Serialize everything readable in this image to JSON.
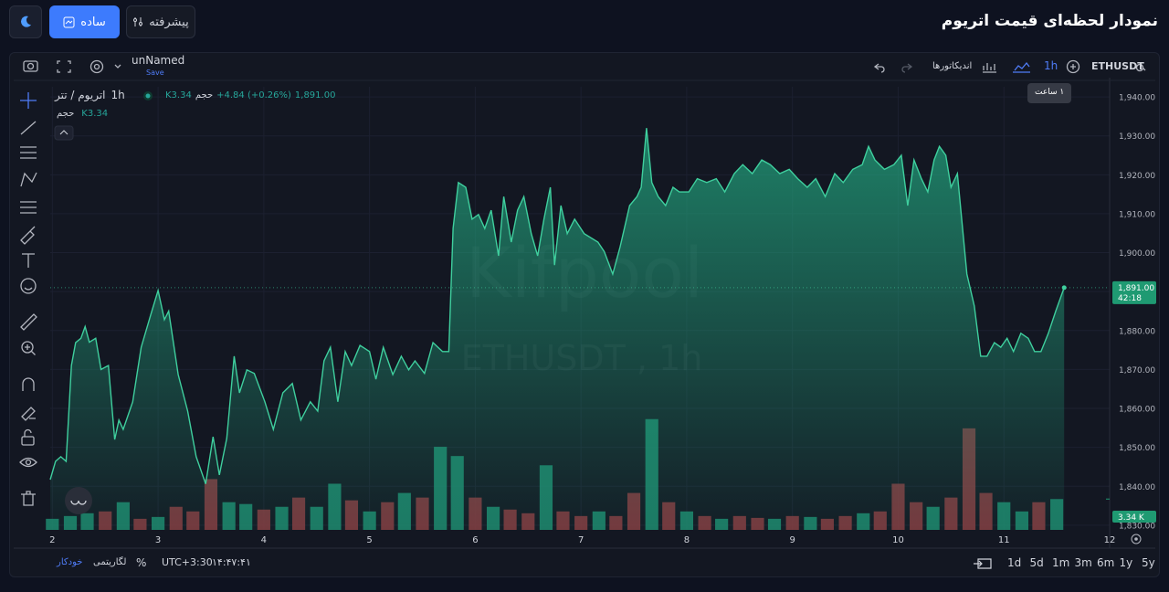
{
  "header": {
    "title": "نمودار لحظه‌ای قیمت اتریوم",
    "simple": "ساده",
    "advanced": "پیشرفته"
  },
  "toolbar": {
    "layout_name": "unNamed",
    "save": "Save",
    "symbol": "ETHUSDT",
    "interval": "1h",
    "indicators": "اندیکاتورها",
    "tooltip": "۱ ساعت"
  },
  "legend": {
    "symbol": "اتریوم / تتر",
    "interval": "1h",
    "volume_label": "حجم",
    "volume": "K3.34",
    "change": "+4.84 (+0.26%)",
    "price": "1,891.00"
  },
  "chart_data": {
    "type": "area",
    "watermark": "Kifpool",
    "watermark_sub": "ETHUSDT , 1h",
    "color": "#3fcf9e",
    "x": [
      1.98,
      2.03,
      2.08,
      2.13,
      2.18,
      2.22,
      2.27,
      2.31,
      2.35,
      2.41,
      2.46,
      2.53,
      2.59,
      2.63,
      2.67,
      2.76,
      2.84,
      2.93,
      3.0,
      3.06,
      3.1,
      3.19,
      3.28,
      3.36,
      3.45,
      3.52,
      3.58,
      3.65,
      3.72,
      3.77,
      3.84,
      3.91,
      4.01,
      4.09,
      4.18,
      4.27,
      4.35,
      4.44,
      4.51,
      4.57,
      4.63,
      4.7,
      4.77,
      4.83,
      4.91,
      5.0,
      5.06,
      5.13,
      5.22,
      5.3,
      5.37,
      5.43,
      5.52,
      5.6,
      5.69,
      5.75,
      5.79,
      5.84,
      5.91,
      5.97,
      6.03,
      6.09,
      6.15,
      6.22,
      6.27,
      6.34,
      6.4,
      6.46,
      6.53,
      6.59,
      6.65,
      6.71,
      6.75,
      6.81,
      6.87,
      6.94,
      7.03,
      7.16,
      7.22,
      7.3,
      7.37,
      7.46,
      7.53,
      7.57,
      7.62,
      7.67,
      7.73,
      7.8,
      7.87,
      7.93,
      8.02,
      8.1,
      8.19,
      8.28,
      8.36,
      8.45,
      8.53,
      8.62,
      8.71,
      8.79,
      8.88,
      8.97,
      9.05,
      9.14,
      9.22,
      9.31,
      9.4,
      9.48,
      9.57,
      9.66,
      9.72,
      9.78,
      9.87,
      9.96,
      10.03,
      10.09,
      10.15,
      10.22,
      10.28,
      10.34,
      10.39,
      10.45,
      10.5,
      10.56,
      10.65,
      10.72,
      10.78,
      10.84,
      10.91,
      10.97,
      11.03,
      11.09,
      11.16,
      11.23,
      11.29,
      11.35,
      11.42,
      11.49,
      11.57
    ],
    "values": [
      1841.7,
      1846.4,
      1847.6,
      1846.4,
      1871.0,
      1876.9,
      1878.0,
      1881.0,
      1877.0,
      1878.0,
      1870.0,
      1871.0,
      1852.0,
      1857.0,
      1854.6,
      1861.7,
      1875.7,
      1884.0,
      1890.3,
      1882.8,
      1885.0,
      1868.7,
      1859.3,
      1847.6,
      1840.6,
      1852.7,
      1842.9,
      1852.3,
      1873.4,
      1864.0,
      1869.9,
      1869.0,
      1861.7,
      1854.6,
      1864.0,
      1866.4,
      1857.0,
      1861.7,
      1859.3,
      1872.2,
      1875.7,
      1861.7,
      1874.6,
      1871.0,
      1876.2,
      1874.6,
      1867.5,
      1875.7,
      1868.7,
      1873.4,
      1869.9,
      1872.2,
      1869.0,
      1876.9,
      1874.6,
      1874.6,
      1906.2,
      1918.0,
      1916.8,
      1908.6,
      1909.8,
      1906.2,
      1910.9,
      1899.2,
      1914.4,
      1902.7,
      1910.9,
      1914.4,
      1904.9,
      1899.2,
      1908.6,
      1916.8,
      1896.8,
      1912.1,
      1904.9,
      1908.6,
      1904.9,
      1902.7,
      1900.3,
      1894.5,
      1901.5,
      1912.1,
      1914.4,
      1916.8,
      1932.0,
      1918.0,
      1914.4,
      1912.1,
      1916.8,
      1915.6,
      1915.6,
      1919.0,
      1918.0,
      1919.0,
      1915.6,
      1920.3,
      1922.6,
      1920.3,
      1923.8,
      1922.6,
      1920.3,
      1921.4,
      1919.0,
      1916.8,
      1919.0,
      1914.4,
      1920.3,
      1918.0,
      1921.4,
      1922.6,
      1927.3,
      1923.8,
      1921.4,
      1922.6,
      1925.0,
      1912.1,
      1923.8,
      1919.0,
      1915.6,
      1923.8,
      1927.3,
      1925.0,
      1916.8,
      1920.3,
      1894.5,
      1886.3,
      1873.4,
      1873.4,
      1876.9,
      1875.7,
      1878.0,
      1874.6,
      1879.3,
      1878.0,
      1874.6,
      1874.6,
      1879.3,
      1885.0,
      1891.0
    ],
    "xlim": [
      1.98,
      12
    ],
    "xticks": [
      2,
      3,
      4,
      5,
      6,
      7,
      8,
      9,
      10,
      11,
      12
    ],
    "ylim": [
      1828.8,
      1942.6
    ],
    "yticks": [
      {
        "value": 1830,
        "label": "1,830.00"
      },
      {
        "value": 1840,
        "label": "1,840.00"
      },
      {
        "value": 1850,
        "label": "1,850.00"
      },
      {
        "value": 1860,
        "label": "1,860.00"
      },
      {
        "value": 1870,
        "label": "1,870.00"
      },
      {
        "value": 1880,
        "label": "1,880.00"
      },
      {
        "value": 1890,
        "label": "1,890.00"
      },
      {
        "value": 1900,
        "label": "1,900.00"
      },
      {
        "value": 1910,
        "label": "1,910.00"
      },
      {
        "value": 1920,
        "label": "1,920.00"
      },
      {
        "value": 1930,
        "label": "1,930.00"
      },
      {
        "value": 1940,
        "label": "1,940.00"
      }
    ],
    "grid": true,
    "last_price": {
      "value": 1891,
      "label": "1,891.00",
      "countdown": "42:18"
    },
    "volume": {
      "x": [
        2.0,
        2.17,
        2.33,
        2.5,
        2.67,
        2.83,
        3.0,
        3.17,
        3.33,
        3.5,
        3.67,
        3.83,
        4.0,
        4.17,
        4.33,
        4.5,
        4.67,
        4.83,
        5.0,
        5.17,
        5.33,
        5.5,
        5.67,
        5.83,
        6.0,
        6.17,
        6.33,
        6.5,
        6.67,
        6.83,
        7.0,
        7.17,
        7.33,
        7.5,
        7.67,
        7.83,
        8.0,
        8.17,
        8.33,
        8.5,
        8.67,
        8.83,
        9.0,
        9.17,
        9.33,
        9.5,
        9.67,
        9.83,
        10.0,
        10.17,
        10.33,
        10.5,
        10.67,
        10.83,
        11.0,
        11.17,
        11.33,
        11.5
      ],
      "values": [
        1.2,
        1.5,
        1.8,
        2.0,
        3.0,
        1.2,
        1.4,
        2.5,
        2.0,
        5.5,
        3.0,
        2.8,
        2.2,
        2.5,
        3.5,
        2.5,
        5.0,
        3.2,
        2.0,
        3.0,
        4.0,
        3.5,
        9.0,
        8.0,
        3.5,
        2.5,
        2.2,
        1.8,
        7.0,
        2.0,
        1.5,
        2.0,
        1.5,
        4.0,
        12.0,
        3.0,
        2.0,
        1.5,
        1.2,
        1.5,
        1.3,
        1.2,
        1.5,
        1.4,
        1.2,
        1.5,
        1.8,
        2.0,
        5.0,
        3.0,
        2.5,
        3.5,
        11.0,
        4.0,
        3.0,
        2.0,
        3.0,
        3.34
      ],
      "rising": [
        true,
        true,
        true,
        false,
        true,
        false,
        true,
        false,
        false,
        false,
        true,
        true,
        false,
        true,
        false,
        true,
        true,
        false,
        true,
        false,
        true,
        false,
        true,
        true,
        false,
        true,
        false,
        false,
        true,
        false,
        false,
        true,
        false,
        false,
        true,
        false,
        true,
        false,
        true,
        false,
        false,
        true,
        false,
        true,
        false,
        false,
        true,
        false,
        false,
        false,
        true,
        false,
        false,
        false,
        true,
        true,
        false,
        true
      ],
      "ylim": [
        0,
        48
      ],
      "up_color": "#1f8a6f",
      "down_color": "#8a3a40",
      "last_label": "3.34 K"
    }
  },
  "bottom": {
    "auto": "خودکار",
    "log": "لگاریتمی",
    "percent": "%",
    "timezone": "UTC+3:30",
    "clock": "۱۴:۴۷:۴۱",
    "ranges": [
      "1d",
      "5d",
      "1m",
      "3m",
      "6m",
      "1y",
      "5y"
    ]
  }
}
